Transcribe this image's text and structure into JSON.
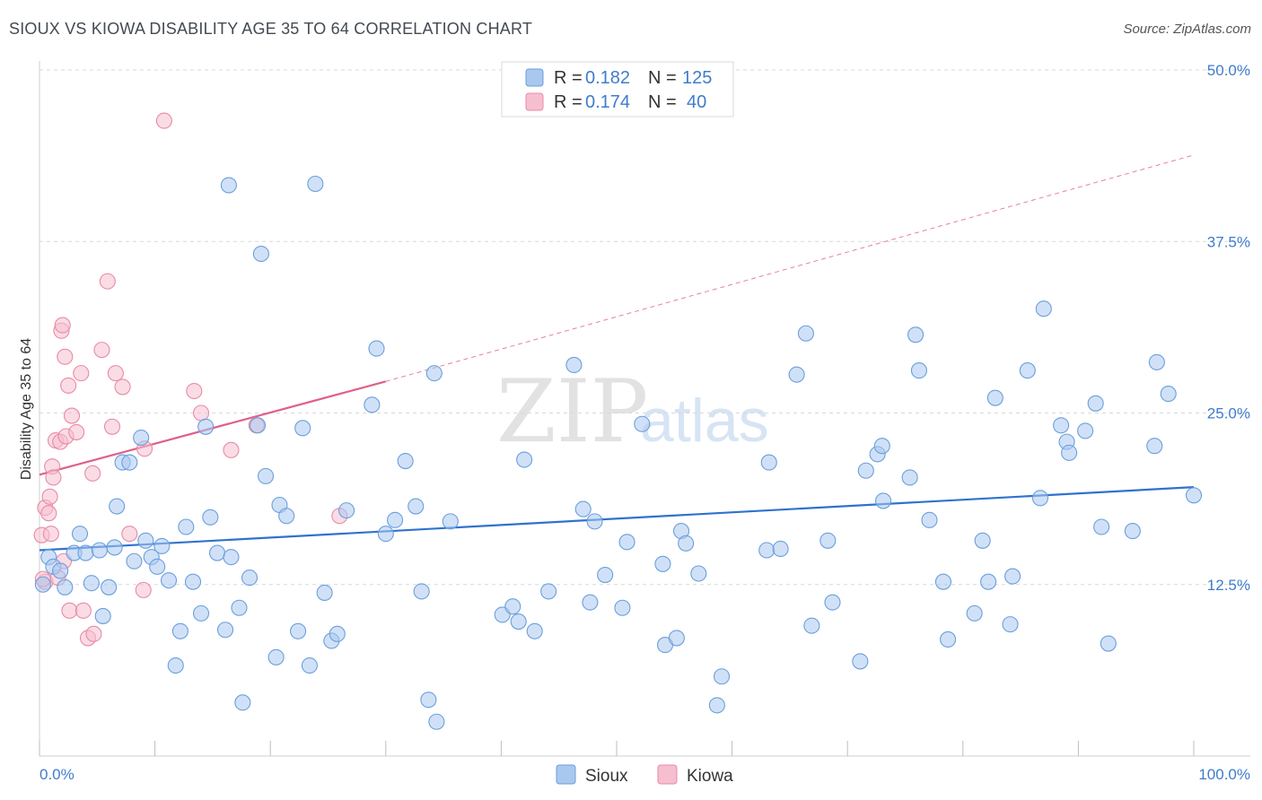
{
  "title": "SIOUX VS KIOWA DISABILITY AGE 35 TO 64 CORRELATION CHART",
  "source": "Source: ZipAtlas.com",
  "watermark": {
    "zip": "ZIP",
    "atlas": "atlas"
  },
  "colors": {
    "sioux_fill": "#a9c8f0",
    "sioux_stroke": "#6b9fdc",
    "sioux_line": "#2f72cf",
    "kiowa_fill": "#f6bfd0",
    "kiowa_stroke": "#e98aa8",
    "kiowa_line": "#e0608a",
    "grid": "#d8d8d8",
    "tick_text": "#3f7ccc"
  },
  "legend": {
    "rows": [
      {
        "r_label": "R =",
        "r_value": "0.182",
        "n_label": "N =",
        "n_value": "125"
      },
      {
        "r_label": "R =",
        "r_value": "0.174",
        "n_label": "N =",
        "n_value": "40"
      }
    ]
  },
  "chart_data": {
    "type": "scatter",
    "title": "SIOUX VS KIOWA DISABILITY AGE 35 TO 64 CORRELATION CHART",
    "xlabel": "",
    "ylabel": "Disability Age 35 to 64",
    "xlim": [
      0,
      100
    ],
    "ylim": [
      0,
      50
    ],
    "x_tick_labels": [
      "0.0%",
      "100.0%"
    ],
    "y_ticks": [
      12.5,
      25.0,
      37.5,
      50.0
    ],
    "y_tick_labels": [
      "12.5%",
      "25.0%",
      "37.5%",
      "50.0%"
    ],
    "legend_position": "bottom-center",
    "series": [
      {
        "name": "Sioux",
        "r": 0.182,
        "n": 125,
        "trend": {
          "x0": 0,
          "y0": 15.0,
          "x1": 100,
          "y1": 19.6
        },
        "points": [
          [
            0.3,
            12.5
          ],
          [
            0.8,
            14.5
          ],
          [
            1.2,
            13.8
          ],
          [
            1.8,
            13.5
          ],
          [
            2.2,
            12.3
          ],
          [
            3.0,
            14.8
          ],
          [
            3.5,
            16.2
          ],
          [
            4.0,
            14.8
          ],
          [
            4.5,
            12.6
          ],
          [
            5.2,
            15.0
          ],
          [
            5.5,
            10.2
          ],
          [
            6.0,
            12.3
          ],
          [
            6.5,
            15.2
          ],
          [
            6.7,
            18.2
          ],
          [
            7.2,
            21.4
          ],
          [
            7.8,
            21.4
          ],
          [
            8.2,
            14.2
          ],
          [
            8.8,
            23.2
          ],
          [
            9.2,
            15.7
          ],
          [
            9.7,
            14.5
          ],
          [
            10.2,
            13.8
          ],
          [
            10.6,
            15.3
          ],
          [
            11.2,
            12.8
          ],
          [
            11.8,
            6.6
          ],
          [
            12.2,
            9.1
          ],
          [
            12.7,
            16.7
          ],
          [
            13.3,
            12.7
          ],
          [
            14.0,
            10.4
          ],
          [
            14.4,
            24.0
          ],
          [
            14.8,
            17.4
          ],
          [
            15.4,
            14.8
          ],
          [
            16.1,
            9.2
          ],
          [
            16.4,
            41.6
          ],
          [
            16.6,
            14.5
          ],
          [
            17.3,
            10.8
          ],
          [
            17.6,
            3.9
          ],
          [
            18.2,
            13.0
          ],
          [
            18.9,
            24.1
          ],
          [
            19.2,
            36.6
          ],
          [
            19.6,
            20.4
          ],
          [
            20.5,
            7.2
          ],
          [
            20.8,
            18.3
          ],
          [
            21.4,
            17.5
          ],
          [
            22.4,
            9.1
          ],
          [
            22.8,
            23.9
          ],
          [
            23.4,
            6.6
          ],
          [
            23.9,
            41.7
          ],
          [
            24.7,
            11.9
          ],
          [
            25.3,
            8.4
          ],
          [
            25.8,
            8.9
          ],
          [
            26.6,
            17.9
          ],
          [
            28.8,
            25.6
          ],
          [
            29.2,
            29.7
          ],
          [
            30.0,
            16.2
          ],
          [
            30.8,
            17.2
          ],
          [
            31.7,
            21.5
          ],
          [
            32.6,
            18.2
          ],
          [
            33.1,
            12.0
          ],
          [
            33.7,
            4.1
          ],
          [
            34.2,
            27.9
          ],
          [
            34.4,
            2.5
          ],
          [
            35.6,
            17.1
          ],
          [
            40.1,
            10.3
          ],
          [
            41.0,
            10.9
          ],
          [
            41.5,
            9.8
          ],
          [
            42.0,
            21.6
          ],
          [
            42.9,
            9.1
          ],
          [
            44.1,
            12.0
          ],
          [
            46.3,
            28.5
          ],
          [
            47.1,
            18.0
          ],
          [
            47.7,
            11.2
          ],
          [
            48.1,
            17.1
          ],
          [
            49.0,
            13.2
          ],
          [
            50.5,
            10.8
          ],
          [
            50.9,
            15.6
          ],
          [
            52.2,
            24.2
          ],
          [
            54.0,
            14.0
          ],
          [
            54.2,
            8.1
          ],
          [
            55.2,
            8.6
          ],
          [
            55.6,
            16.4
          ],
          [
            56.0,
            15.5
          ],
          [
            57.1,
            13.3
          ],
          [
            58.7,
            3.7
          ],
          [
            59.1,
            5.8
          ],
          [
            63.0,
            15.0
          ],
          [
            63.2,
            21.4
          ],
          [
            64.2,
            15.1
          ],
          [
            65.6,
            27.8
          ],
          [
            66.4,
            30.8
          ],
          [
            66.9,
            9.5
          ],
          [
            68.3,
            15.7
          ],
          [
            68.7,
            11.2
          ],
          [
            71.1,
            6.9
          ],
          [
            71.6,
            20.8
          ],
          [
            72.6,
            22.0
          ],
          [
            73.0,
            22.6
          ],
          [
            73.1,
            18.6
          ],
          [
            75.4,
            20.3
          ],
          [
            75.9,
            30.7
          ],
          [
            76.2,
            28.1
          ],
          [
            77.1,
            17.2
          ],
          [
            78.3,
            12.7
          ],
          [
            78.7,
            8.5
          ],
          [
            81.0,
            10.4
          ],
          [
            81.7,
            15.7
          ],
          [
            82.2,
            12.7
          ],
          [
            82.8,
            26.1
          ],
          [
            84.1,
            9.6
          ],
          [
            84.3,
            13.1
          ],
          [
            85.6,
            28.1
          ],
          [
            86.7,
            18.8
          ],
          [
            87.0,
            32.6
          ],
          [
            88.5,
            24.1
          ],
          [
            89.0,
            22.9
          ],
          [
            89.2,
            22.1
          ],
          [
            90.6,
            23.7
          ],
          [
            91.5,
            25.7
          ],
          [
            92.0,
            16.7
          ],
          [
            92.6,
            8.2
          ],
          [
            94.7,
            16.4
          ],
          [
            96.6,
            22.6
          ],
          [
            96.8,
            28.7
          ],
          [
            97.8,
            26.4
          ],
          [
            100.0,
            19.0
          ]
        ]
      },
      {
        "name": "Kiowa",
        "r": 0.174,
        "n": 40,
        "trend": {
          "x0": 0,
          "y0": 20.5,
          "x1": 30,
          "y1": 27.3
        },
        "trend_extended": {
          "x0": 30,
          "y0": 27.3,
          "x1": 100,
          "y1": 43.8
        },
        "points": [
          [
            0.2,
            16.1
          ],
          [
            0.5,
            18.1
          ],
          [
            0.5,
            12.7
          ],
          [
            0.8,
            17.7
          ],
          [
            0.9,
            18.9
          ],
          [
            1.0,
            16.2
          ],
          [
            1.1,
            21.1
          ],
          [
            1.2,
            20.3
          ],
          [
            1.4,
            23.0
          ],
          [
            1.6,
            13.0
          ],
          [
            1.8,
            22.9
          ],
          [
            1.9,
            31.0
          ],
          [
            2.0,
            31.4
          ],
          [
            2.1,
            14.2
          ],
          [
            2.2,
            29.1
          ],
          [
            2.3,
            23.3
          ],
          [
            2.5,
            27.0
          ],
          [
            2.6,
            10.6
          ],
          [
            2.8,
            24.8
          ],
          [
            3.2,
            23.6
          ],
          [
            3.6,
            27.9
          ],
          [
            3.8,
            10.6
          ],
          [
            4.2,
            8.6
          ],
          [
            4.6,
            20.6
          ],
          [
            4.7,
            8.9
          ],
          [
            5.4,
            29.6
          ],
          [
            5.9,
            34.6
          ],
          [
            6.3,
            24.0
          ],
          [
            6.6,
            27.9
          ],
          [
            7.2,
            26.9
          ],
          [
            7.8,
            16.2
          ],
          [
            9.0,
            12.1
          ],
          [
            9.1,
            22.4
          ],
          [
            10.8,
            46.3
          ],
          [
            13.4,
            26.6
          ],
          [
            14.0,
            25.0
          ],
          [
            16.6,
            22.3
          ],
          [
            18.8,
            24.1
          ],
          [
            26.0,
            17.5
          ],
          [
            0.3,
            12.9
          ]
        ]
      }
    ]
  },
  "bottom_legend": [
    {
      "label": "Sioux"
    },
    {
      "label": "Kiowa"
    }
  ]
}
